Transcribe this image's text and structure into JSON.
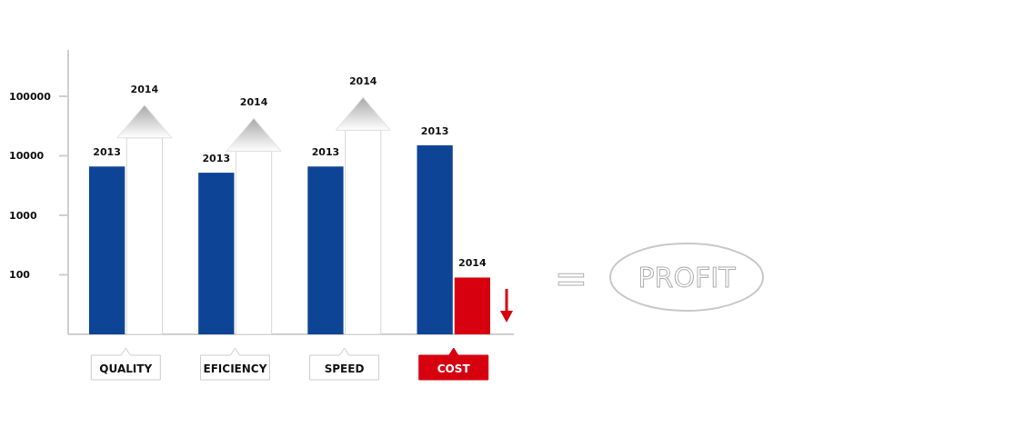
{
  "chart_data": {
    "type": "bar",
    "categories": [
      "QUALITY",
      "EFICIENCY",
      "SPEED",
      "COST"
    ],
    "series": [
      {
        "name": "2013",
        "color": "#0e4496",
        "values": [
          6600,
          5200,
          6600,
          15000
        ]
      },
      {
        "name": "2014",
        "colors": [
          "#ffffff",
          "#ffffff",
          "#ffffff",
          "#d7000f"
        ],
        "values": [
          20000,
          12000,
          27000,
          90
        ]
      }
    ],
    "log": "y",
    "ylim": [
      10,
      600000
    ],
    "yticks": [
      100,
      1000,
      10000,
      100000
    ],
    "legend": false,
    "grid": false,
    "annotations": [
      "=",
      "PROFIT"
    ]
  }
}
